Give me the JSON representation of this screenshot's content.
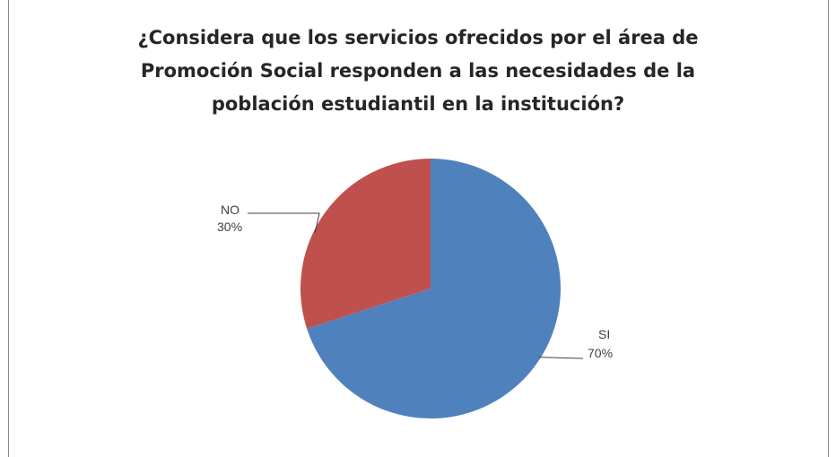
{
  "chart_data": {
    "type": "pie",
    "title_lines": [
      "¿Considera que los servicios ofrecidos por el área de",
      "Promoción Social responden a las necesidades de la",
      "población estudiantil en la institución?"
    ],
    "slices": [
      {
        "label": "SI",
        "value": 70,
        "value_label": "70%",
        "color": "#4f81bd"
      },
      {
        "label": "NO",
        "value": 30,
        "value_label": "30%",
        "color": "#c0504d"
      }
    ],
    "start_angle_deg": 0,
    "direction": "clockwise",
    "legend": "none",
    "data_labels": "outside-with-leader-lines"
  }
}
